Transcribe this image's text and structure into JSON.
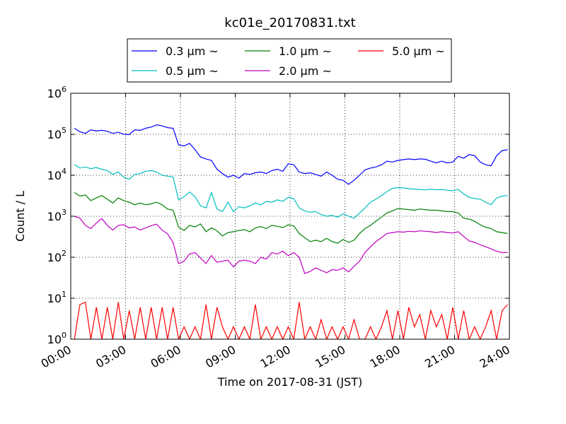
{
  "chart_data": {
    "type": "line",
    "title": "kc01e_20170831.txt",
    "xlabel": "Time on 2017-08-31 (JST)",
    "ylabel": "Count / L",
    "yscale": "log",
    "xlim": [
      0,
      24
    ],
    "ylim": [
      1,
      1000000
    ],
    "grid": true,
    "legend_position": "top-center",
    "xticks": [
      "00:00",
      "03:00",
      "06:00",
      "09:00",
      "12:00",
      "15:00",
      "18:00",
      "21:00",
      "24:00"
    ],
    "yticks": [
      {
        "base": "10",
        "exp": "0"
      },
      {
        "base": "10",
        "exp": "1"
      },
      {
        "base": "10",
        "exp": "2"
      },
      {
        "base": "10",
        "exp": "3"
      },
      {
        "base": "10",
        "exp": "4"
      },
      {
        "base": "10",
        "exp": "5"
      },
      {
        "base": "10",
        "exp": "6"
      }
    ],
    "x_hours": [
      0.2,
      0.5,
      0.8,
      1.1,
      1.4,
      1.7,
      2.0,
      2.3,
      2.6,
      2.9,
      3.2,
      3.5,
      3.8,
      4.1,
      4.4,
      4.7,
      5.0,
      5.3,
      5.6,
      5.9,
      6.2,
      6.5,
      6.8,
      7.1,
      7.4,
      7.7,
      8.0,
      8.3,
      8.6,
      8.9,
      9.2,
      9.5,
      9.8,
      10.1,
      10.4,
      10.7,
      11.0,
      11.3,
      11.6,
      11.9,
      12.2,
      12.5,
      12.8,
      13.1,
      13.4,
      13.7,
      14.0,
      14.3,
      14.6,
      14.9,
      15.2,
      15.5,
      15.8,
      16.1,
      16.4,
      16.7,
      17.0,
      17.3,
      17.6,
      17.9,
      18.2,
      18.5,
      18.8,
      19.1,
      19.4,
      19.7,
      20.0,
      20.3,
      20.6,
      20.9,
      21.2,
      21.5,
      21.8,
      22.1,
      22.4,
      22.7,
      23.0,
      23.3,
      23.6,
      23.9
    ],
    "series": [
      {
        "name": "0.3 μm ~",
        "color": "#0000ff",
        "values": [
          140000,
          115000,
          105000,
          128000,
          120000,
          125000,
          118000,
          105000,
          112000,
          100000,
          98000,
          128000,
          125000,
          140000,
          150000,
          170000,
          160000,
          145000,
          140000,
          55000,
          52000,
          60000,
          42000,
          28000,
          25000,
          23000,
          14000,
          11000,
          9000,
          10000,
          8500,
          11000,
          10500,
          11500,
          12000,
          11000,
          13000,
          14000,
          12500,
          19000,
          18000,
          12000,
          11000,
          11500,
          10500,
          9500,
          12000,
          10000,
          8000,
          7500,
          6000,
          7500,
          10000,
          13500,
          15000,
          16000,
          18000,
          22000,
          21000,
          23000,
          24000,
          25000,
          24000,
          25000,
          24500,
          22000,
          20000,
          22000,
          20000,
          21000,
          29000,
          26000,
          32000,
          30000,
          21000,
          18000,
          17000,
          30000,
          40000,
          42000
        ]
      },
      {
        "name": "0.5 μm ~",
        "color": "#00bfbf",
        "values": [
          18000,
          15000,
          16000,
          14500,
          15500,
          14000,
          13000,
          10500,
          12000,
          9000,
          8000,
          10500,
          11000,
          12500,
          13000,
          12000,
          10000,
          9500,
          9000,
          2500,
          3000,
          3900,
          3000,
          1800,
          1600,
          3800,
          1500,
          1300,
          2200,
          1300,
          1700,
          1600,
          1800,
          2100,
          1900,
          2300,
          2200,
          2500,
          2300,
          2900,
          2700,
          1600,
          1350,
          1250,
          1300,
          1100,
          1000,
          1050,
          950,
          1150,
          1000,
          900,
          1200,
          1600,
          2200,
          2600,
          3200,
          4000,
          4800,
          5000,
          4900,
          4700,
          4600,
          4500,
          4400,
          4600,
          4400,
          4500,
          4300,
          4200,
          4500,
          3500,
          2900,
          2700,
          2600,
          2200,
          1900,
          2800,
          3100,
          3200
        ]
      },
      {
        "name": "1.0 μm ~",
        "color": "#008000",
        "values": [
          3800,
          3100,
          3300,
          2400,
          2800,
          3200,
          2600,
          2100,
          2800,
          2400,
          2200,
          1900,
          2100,
          1900,
          2000,
          2200,
          1900,
          1500,
          1400,
          540,
          450,
          600,
          550,
          650,
          420,
          520,
          440,
          330,
          400,
          420,
          450,
          470,
          420,
          520,
          560,
          500,
          600,
          570,
          530,
          620,
          580,
          380,
          300,
          240,
          260,
          240,
          290,
          240,
          220,
          270,
          230,
          260,
          380,
          500,
          600,
          760,
          950,
          1200,
          1350,
          1550,
          1500,
          1450,
          1400,
          1500,
          1450,
          1400,
          1400,
          1350,
          1300,
          1300,
          1200,
          900,
          850,
          750,
          620,
          540,
          500,
          420,
          400,
          380
        ]
      },
      {
        "name": "2.0 μm ~",
        "color": "#bf00bf",
        "values": [
          1000,
          900,
          600,
          500,
          680,
          880,
          600,
          460,
          600,
          620,
          520,
          550,
          460,
          520,
          590,
          640,
          460,
          370,
          230,
          70,
          80,
          120,
          130,
          95,
          70,
          110,
          75,
          80,
          85,
          58,
          80,
          85,
          80,
          70,
          100,
          90,
          130,
          120,
          140,
          110,
          130,
          100,
          40,
          45,
          55,
          48,
          42,
          50,
          48,
          55,
          44,
          60,
          80,
          130,
          180,
          240,
          300,
          380,
          400,
          420,
          410,
          430,
          420,
          440,
          430,
          420,
          400,
          420,
          400,
          390,
          420,
          320,
          250,
          230,
          200,
          180,
          160,
          140,
          130,
          130
        ]
      },
      {
        "name": "5.0 μm ~",
        "color": "#ff0000",
        "values": [
          1,
          7,
          8,
          1,
          6,
          1,
          6,
          1,
          8,
          1,
          5,
          1,
          6,
          1,
          6,
          1,
          6,
          1,
          6,
          1,
          2,
          1,
          2,
          1,
          7,
          1,
          6,
          2,
          1,
          2,
          1,
          2,
          1,
          7,
          1,
          2,
          1,
          2,
          1,
          2,
          1,
          8,
          1,
          2,
          1,
          3,
          1,
          2,
          1,
          2,
          1,
          3,
          1,
          1,
          2,
          1,
          2,
          5,
          1,
          5,
          1,
          6,
          2,
          4,
          1,
          5,
          2,
          4,
          1,
          6,
          1,
          5,
          1,
          2,
          1,
          2,
          5,
          1,
          5,
          7
        ]
      }
    ]
  }
}
